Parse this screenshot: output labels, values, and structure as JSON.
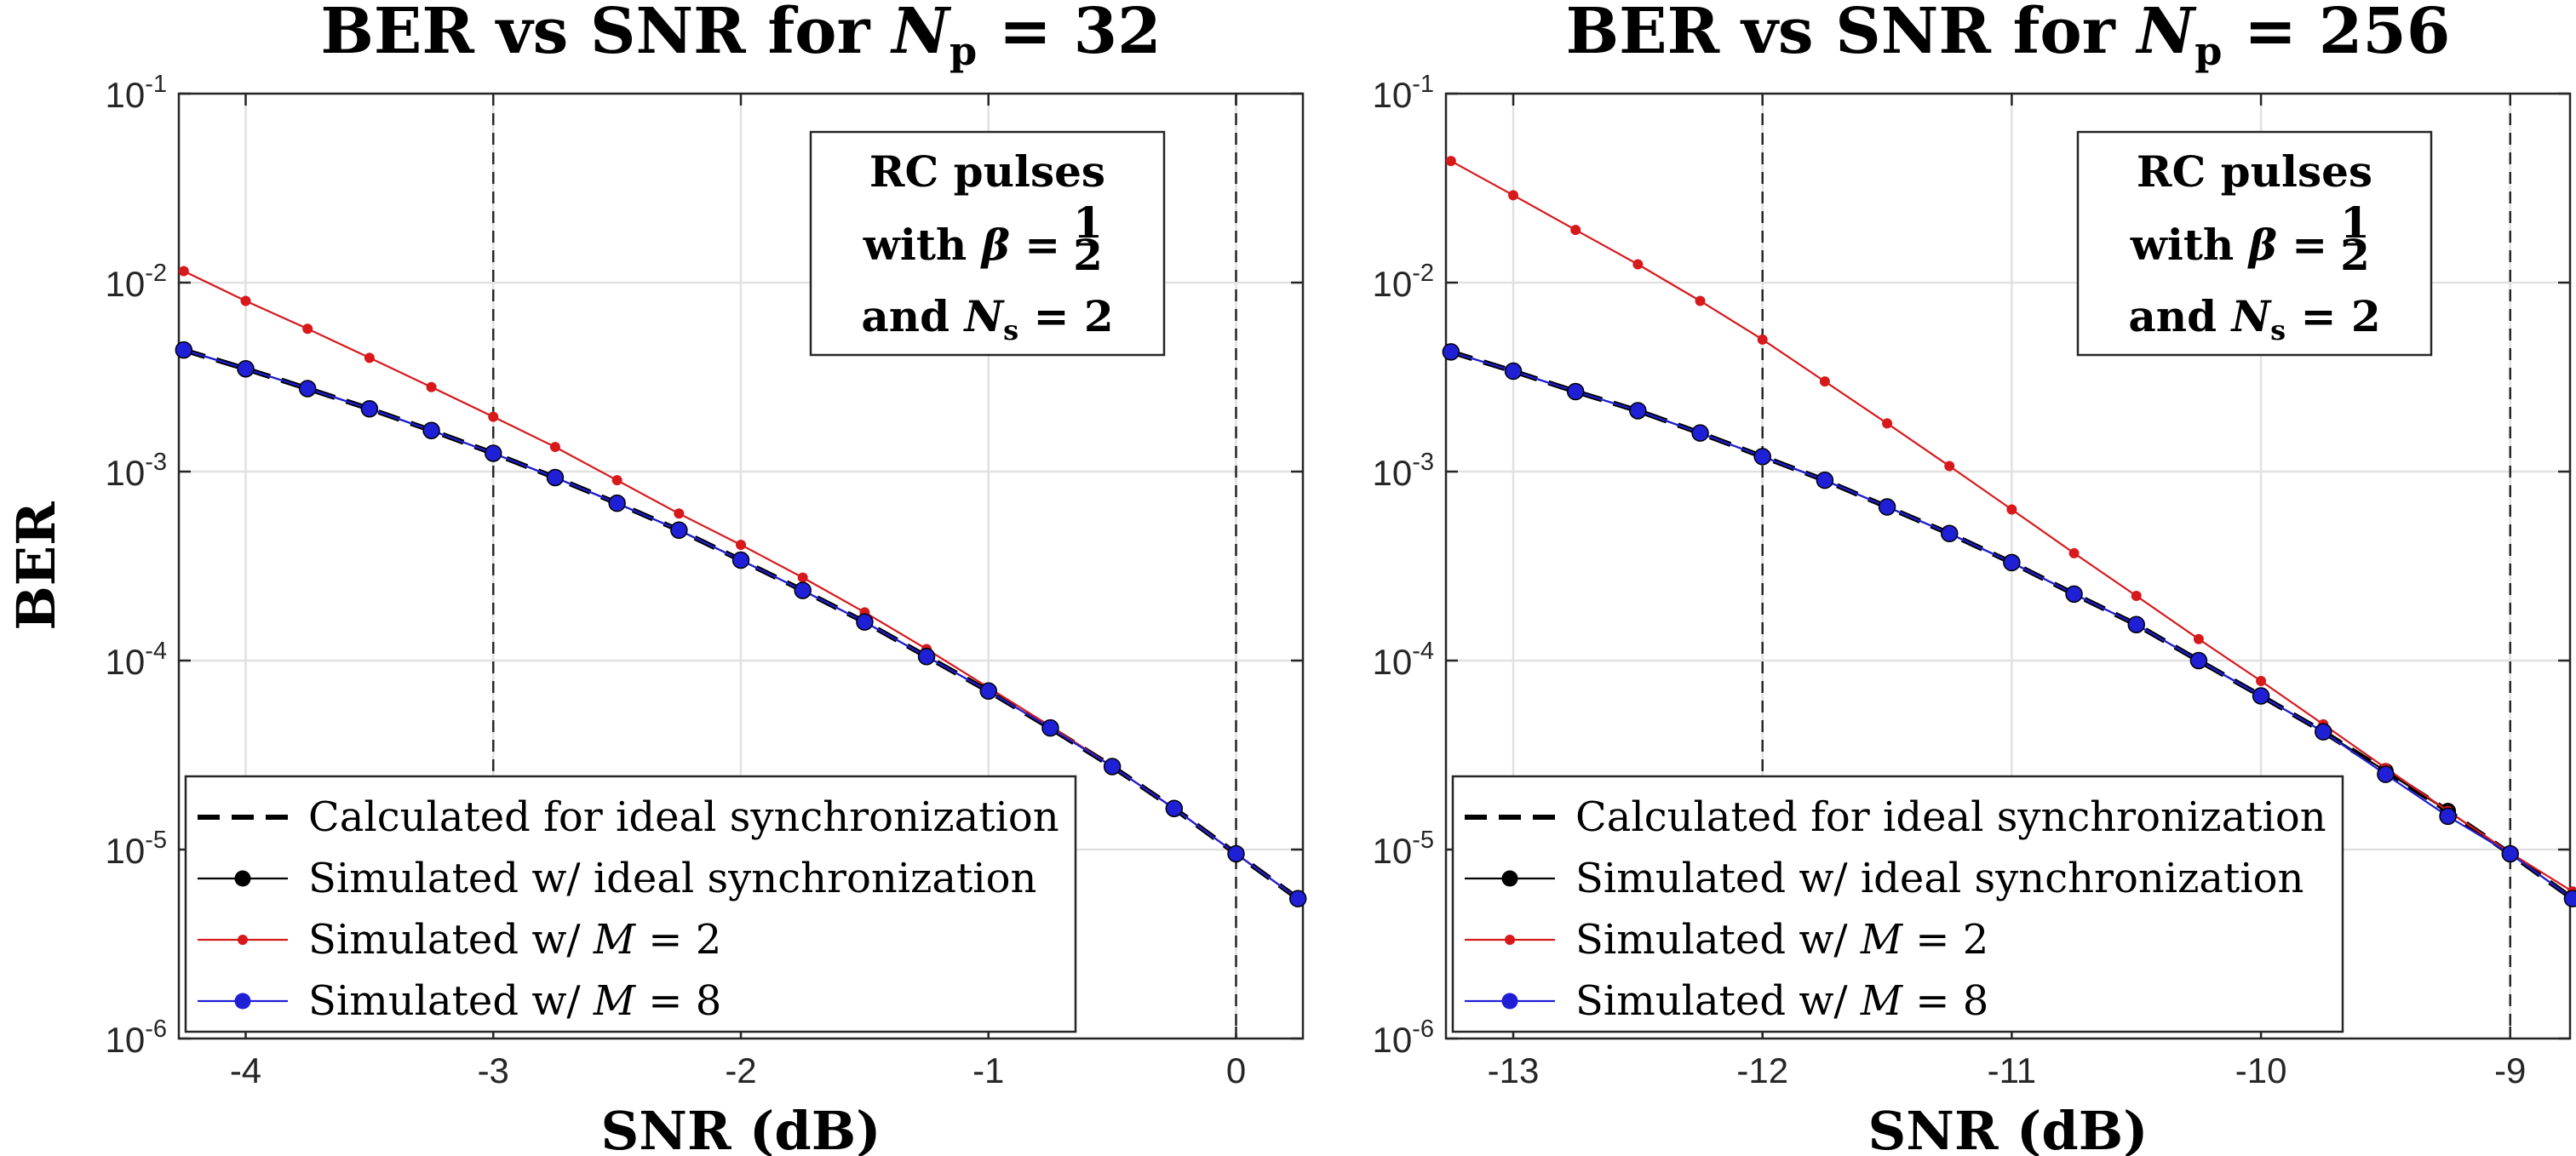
{
  "chart_data": [
    {
      "type": "line",
      "title": "BER vs SNR for N_p = 32",
      "title_text": "BER vs SNR for ",
      "title_var": "N",
      "title_sub": "p",
      "title_value": " = 32",
      "xlabel": "SNR (dB)",
      "ylabel": "BER",
      "yscale": "log",
      "xlim": [
        -4.27,
        0.27
      ],
      "ylim": [
        1e-06,
        0.1
      ],
      "xticks": [
        -4,
        -3,
        -2,
        -1,
        0
      ],
      "xtick_labels": [
        "-4",
        "-3",
        "-2",
        "-1",
        "0"
      ],
      "yticks": [
        1e-06,
        1e-05,
        0.0001,
        0.001,
        0.01,
        0.1
      ],
      "ytick_exponents": [
        "-6",
        "-5",
        "-4",
        "-3",
        "-2",
        "-1"
      ],
      "ytick_base": "10",
      "grid": true,
      "vertical_dashed_lines": [
        -3,
        0
      ],
      "annotation": {
        "line1": "RC pulses",
        "line2_prefix": "with ",
        "line2_var": "β",
        "line2_eq": " = ",
        "line2_num": "1",
        "line2_den": "2",
        "line3_prefix": "and ",
        "line3_var": "N",
        "line3_sub": "s",
        "line3_eq": " = 2",
        "position": "top-right"
      },
      "legend_position": "bottom-left",
      "series": [
        {
          "name": "Calculated for ideal synchronization",
          "label_prefix": "Calculated for ideal synchronization",
          "style": "dashed",
          "color": "#000000",
          "x": [
            -4.25,
            -4.0,
            -3.75,
            -3.5,
            -3.25,
            -3.0,
            -2.75,
            -2.5,
            -2.25,
            -2.0,
            -1.75,
            -1.5,
            -1.25,
            -1.0,
            -0.75,
            -0.5,
            -0.25,
            0.0,
            0.25
          ],
          "y": [
            0.0044,
            0.0035,
            0.00275,
            0.00215,
            0.00165,
            0.00125,
            0.00093,
            0.00068,
            0.00049,
            0.00034,
            0.000235,
            0.00016,
            0.000105,
            6.9e-05,
            4.4e-05,
            2.75e-05,
            1.65e-05,
            9.5e-06,
            5.5e-06
          ]
        },
        {
          "name": "Simulated w/ ideal synchronization",
          "label_prefix": "Simulated w/ ideal synchronization",
          "style": "solid-marker",
          "color": "#000000",
          "x": [
            -4.25,
            -4.0,
            -3.75,
            -3.5,
            -3.25,
            -3.0,
            -2.75,
            -2.5,
            -2.25,
            -2.0,
            -1.75,
            -1.5,
            -1.25,
            -1.0,
            -0.75,
            -0.5,
            -0.25,
            0.0,
            0.25
          ],
          "y": [
            0.0044,
            0.0035,
            0.00275,
            0.00215,
            0.00165,
            0.00125,
            0.00093,
            0.00068,
            0.00049,
            0.00034,
            0.000235,
            0.00016,
            0.000105,
            6.9e-05,
            4.4e-05,
            2.75e-05,
            1.65e-05,
            9.5e-06,
            5.5e-06
          ]
        },
        {
          "name": "Simulated w/ M = 2",
          "label_prefix": "Simulated w/ ",
          "label_var": "M",
          "label_eq": " = 2",
          "style": "solid-small-marker",
          "color": "#d7191c",
          "x": [
            -4.25,
            -4.0,
            -3.75,
            -3.5,
            -3.25,
            -3.0,
            -2.75,
            -2.5,
            -2.25,
            -2.0,
            -1.75,
            -1.5,
            -1.25,
            -1.0,
            -0.75,
            -0.5,
            -0.25,
            0.0,
            0.25
          ],
          "y": [
            0.0115,
            0.008,
            0.0057,
            0.004,
            0.0028,
            0.00195,
            0.00135,
            0.0009,
            0.0006,
            0.00041,
            0.000275,
            0.00018,
            0.000115,
            7.2e-05,
            4.5e-05,
            2.75e-05,
            1.65e-05,
            9.5e-06,
            5.5e-06
          ]
        },
        {
          "name": "Simulated w/ M = 8",
          "label_prefix": "Simulated w/ ",
          "label_var": "M",
          "label_eq": " = 8",
          "style": "solid-marker",
          "color": "#1f1fd6",
          "x": [
            -4.25,
            -4.0,
            -3.75,
            -3.5,
            -3.25,
            -3.0,
            -2.75,
            -2.5,
            -2.25,
            -2.0,
            -1.75,
            -1.5,
            -1.25,
            -1.0,
            -0.75,
            -0.5,
            -0.25,
            0.0,
            0.25
          ],
          "y": [
            0.0044,
            0.0035,
            0.00275,
            0.00215,
            0.00165,
            0.00125,
            0.00093,
            0.00068,
            0.00049,
            0.00034,
            0.000235,
            0.00016,
            0.000105,
            6.9e-05,
            4.4e-05,
            2.75e-05,
            1.65e-05,
            9.5e-06,
            5.5e-06
          ]
        }
      ]
    },
    {
      "type": "line",
      "title": "BER vs SNR for N_p = 256",
      "title_text": "BER vs SNR for ",
      "title_var": "N",
      "title_sub": "p",
      "title_value": " = 256",
      "xlabel": "SNR (dB)",
      "ylabel": "",
      "yscale": "log",
      "xlim": [
        -13.27,
        -8.76
      ],
      "ylim": [
        1e-06,
        0.1
      ],
      "xticks": [
        -13,
        -12,
        -11,
        -10,
        -9
      ],
      "xtick_labels": [
        "-13",
        "-12",
        "-11",
        "-10",
        "-9"
      ],
      "yticks": [
        1e-06,
        1e-05,
        0.0001,
        0.001,
        0.01,
        0.1
      ],
      "ytick_exponents": [
        "-6",
        "-5",
        "-4",
        "-3",
        "-2",
        "-1"
      ],
      "ytick_base": "10",
      "grid": true,
      "vertical_dashed_lines": [
        -12,
        -9
      ],
      "annotation": {
        "line1": "RC pulses",
        "line2_prefix": "with ",
        "line2_var": "β",
        "line2_eq": " = ",
        "line2_num": "1",
        "line2_den": "2",
        "line3_prefix": "and ",
        "line3_var": "N",
        "line3_sub": "s",
        "line3_eq": " = 2",
        "position": "top-right"
      },
      "legend_position": "bottom-left",
      "series": [
        {
          "name": "Calculated for ideal synchronization",
          "label_prefix": "Calculated for ideal synchronization",
          "style": "dashed",
          "color": "#000000",
          "x": [
            -13.25,
            -13.0,
            -12.75,
            -12.5,
            -12.25,
            -12.0,
            -11.75,
            -11.5,
            -11.25,
            -11.0,
            -10.75,
            -10.5,
            -10.25,
            -10.0,
            -9.75,
            -9.5,
            -9.25,
            -9.0,
            -8.75
          ],
          "y": [
            0.0043,
            0.0034,
            0.00265,
            0.0021,
            0.0016,
            0.0012,
            0.0009,
            0.00065,
            0.00047,
            0.00033,
            0.000225,
            0.000155,
            0.0001,
            6.5e-05,
            4.2e-05,
            2.6e-05,
            1.6e-05,
            9.5e-06,
            5.5e-06
          ]
        },
        {
          "name": "Simulated w/ ideal synchronization",
          "label_prefix": "Simulated w/ ideal synchronization",
          "style": "solid-marker",
          "color": "#000000",
          "x": [
            -13.25,
            -13.0,
            -12.75,
            -12.5,
            -12.25,
            -12.0,
            -11.75,
            -11.5,
            -11.25,
            -11.0,
            -10.75,
            -10.5,
            -10.25,
            -10.0,
            -9.75,
            -9.5,
            -9.25,
            -9.0,
            -8.75
          ],
          "y": [
            0.0043,
            0.0034,
            0.00265,
            0.0021,
            0.0016,
            0.0012,
            0.0009,
            0.00065,
            0.00047,
            0.00033,
            0.000225,
            0.000155,
            0.0001,
            6.5e-05,
            4.2e-05,
            2.6e-05,
            1.6e-05,
            9.5e-06,
            5.5e-06
          ]
        },
        {
          "name": "Simulated w/ M = 2",
          "label_prefix": "Simulated w/ ",
          "label_var": "M",
          "label_eq": " = 2",
          "style": "solid-small-marker",
          "color": "#d7191c",
          "x": [
            -13.25,
            -13.0,
            -12.75,
            -12.5,
            -12.25,
            -12.0,
            -11.75,
            -11.5,
            -11.25,
            -11.0,
            -10.75,
            -10.5,
            -10.25,
            -10.0,
            -9.75,
            -9.5,
            -9.25,
            -9.0,
            -8.75
          ],
          "y": [
            0.044,
            0.029,
            0.019,
            0.0125,
            0.008,
            0.005,
            0.003,
            0.0018,
            0.00107,
            0.00063,
            0.00037,
            0.00022,
            0.00013,
            7.8e-05,
            4.6e-05,
            2.7e-05,
            1.6e-05,
            9.6e-06,
            6e-06
          ]
        },
        {
          "name": "Simulated w/ M = 8",
          "label_prefix": "Simulated w/ ",
          "label_var": "M",
          "label_eq": " = 8",
          "style": "solid-marker",
          "color": "#1f1fd6",
          "x": [
            -13.25,
            -13.0,
            -12.75,
            -12.5,
            -12.25,
            -12.0,
            -11.75,
            -11.5,
            -11.25,
            -11.0,
            -10.75,
            -10.5,
            -10.25,
            -10.0,
            -9.75,
            -9.5,
            -9.25,
            -9.0,
            -8.75
          ],
          "y": [
            0.0043,
            0.0034,
            0.00265,
            0.0021,
            0.0016,
            0.0012,
            0.0009,
            0.00065,
            0.00047,
            0.00033,
            0.000225,
            0.000155,
            0.0001,
            6.5e-05,
            4.2e-05,
            2.5e-05,
            1.5e-05,
            9.5e-06,
            5.5e-06
          ]
        }
      ]
    }
  ]
}
